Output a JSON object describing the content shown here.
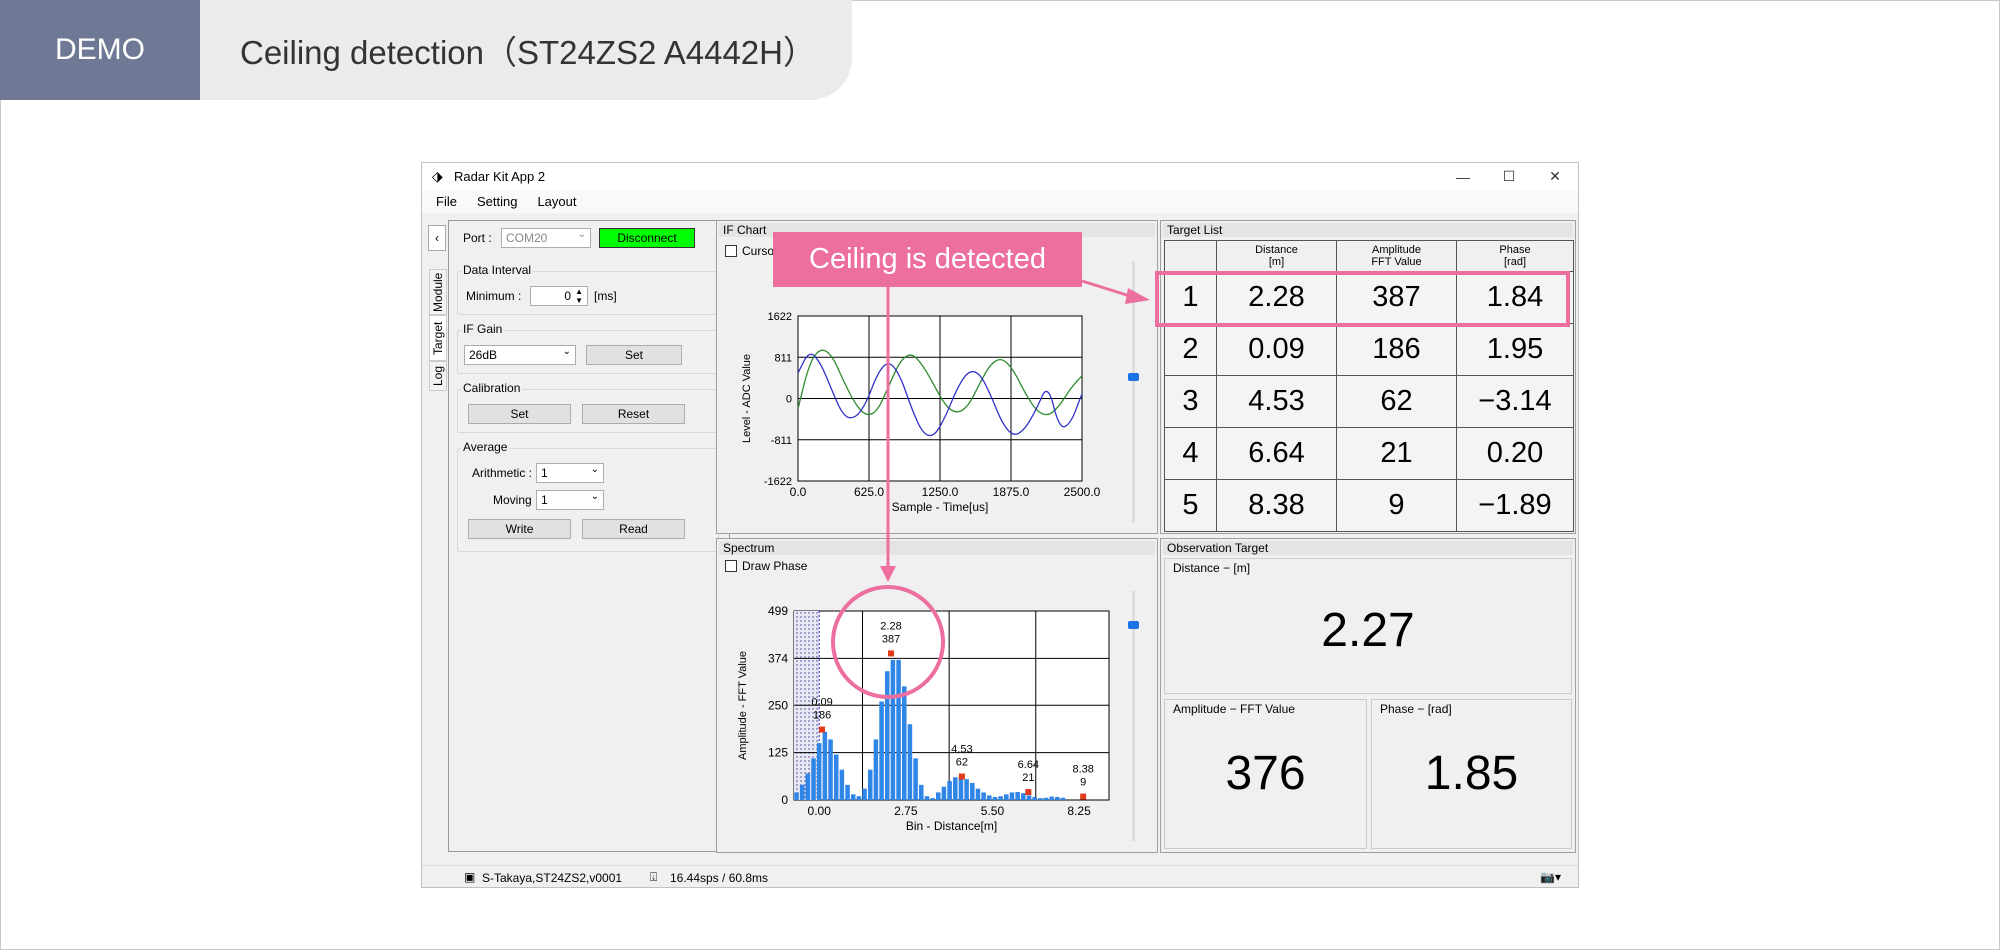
{
  "slide": {
    "demo_label": "DEMO",
    "title": "Ceiling detection（ST24ZS2 A4442H）",
    "callout": "Ceiling is detected"
  },
  "window": {
    "title": "Radar Kit App 2",
    "menu": [
      "File",
      "Setting",
      "Layout"
    ]
  },
  "left_nav": {
    "collapse": "‹",
    "tabs": [
      "Module",
      "Target",
      "Log"
    ]
  },
  "settings": {
    "port_label": "Port :",
    "port_value": "COM20",
    "connect_button": "Disconnect",
    "data_interval": {
      "title": "Data Interval",
      "min_label": "Minimum :",
      "value": "0",
      "unit": "[ms]"
    },
    "if_gain": {
      "title": "IF Gain",
      "value": "26dB",
      "set": "Set"
    },
    "calibration": {
      "title": "Calibration",
      "set": "Set",
      "reset": "Reset"
    },
    "average": {
      "title": "Average",
      "arith_label": "Arithmetic :",
      "arith_value": "1",
      "moving_label": "Moving :",
      "moving_value": "1",
      "write": "Write",
      "read": "Read"
    }
  },
  "if_chart_pane": {
    "title": "IF Chart",
    "cursor_label": "Curso"
  },
  "spectrum_pane": {
    "title": "Spectrum",
    "draw_phase": "Draw Phase"
  },
  "target_list": {
    "title": "Target List",
    "headers": [
      "Distance\n[m]",
      "Amplitude\nFFT Value",
      "Phase\n[rad]"
    ],
    "rows": [
      {
        "idx": "1",
        "distance": "2.28",
        "amplitude": "387",
        "phase": "1.84"
      },
      {
        "idx": "2",
        "distance": "0.09",
        "amplitude": "186",
        "phase": "1.95"
      },
      {
        "idx": "3",
        "distance": "4.53",
        "amplitude": "62",
        "phase": "−3.14"
      },
      {
        "idx": "4",
        "distance": "6.64",
        "amplitude": "21",
        "phase": "0.20"
      },
      {
        "idx": "5",
        "distance": "8.38",
        "amplitude": "9",
        "phase": "−1.89"
      }
    ]
  },
  "observation": {
    "title": "Observation Target",
    "distance_label": "Distance − [m]",
    "distance_value": "2.27",
    "amplitude_label": "Amplitude − FFT Value",
    "amplitude_value": "376",
    "phase_label": "Phase − [rad]",
    "phase_value": "1.85"
  },
  "status": {
    "device": "S-Takaya,ST24ZS2,v0001",
    "rate": "16.44sps / 60.8ms",
    "camera": "📷▾"
  },
  "colors": {
    "accent_pink": "#ec6fa0",
    "bar_blue": "#2f86e6",
    "disconnect_green": "#00ff00",
    "demo_bg": "#6f7996"
  },
  "chart_data": [
    {
      "type": "line",
      "title": "",
      "xlabel": "Sample - Time[us]",
      "ylabel": "Level - ADC Value",
      "xlim": [
        0,
        2500
      ],
      "ylim": [
        -1622,
        1622
      ],
      "x_ticks": [
        "0.0",
        "625.0",
        "1250.0",
        "1875.0",
        "2500.0"
      ],
      "y_ticks": [
        "1622",
        "811",
        "0",
        "-811",
        "-1622"
      ],
      "grid": true,
      "series": [
        {
          "color": "#2e8b2e",
          "x": [
            0,
            100,
            200,
            300,
            400,
            500,
            600,
            700,
            800,
            900,
            1000,
            1100,
            1200,
            1300,
            1400,
            1500,
            1600,
            1700,
            1800,
            1900,
            2000,
            2100,
            2200,
            2300,
            2400,
            2500
          ],
          "values": [
            -200,
            700,
            1000,
            850,
            350,
            -100,
            -350,
            -250,
            250,
            750,
            900,
            650,
            250,
            -150,
            -300,
            -150,
            300,
            700,
            800,
            550,
            100,
            -250,
            -350,
            -150,
            200,
            450
          ]
        },
        {
          "color": "#3030c8",
          "x": [
            0,
            100,
            200,
            300,
            400,
            500,
            600,
            700,
            800,
            900,
            1000,
            1100,
            1200,
            1300,
            1400,
            1500,
            1600,
            1700,
            1800,
            1900,
            2000,
            2100,
            2200,
            2300,
            2400,
            2500
          ],
          "values": [
            500,
            950,
            700,
            150,
            -350,
            -400,
            -100,
            500,
            750,
            450,
            -200,
            -700,
            -750,
            -350,
            200,
            550,
            500,
            50,
            -500,
            -750,
            -600,
            -200,
            300,
            -600,
            -500,
            100
          ]
        }
      ]
    },
    {
      "type": "bar",
      "title": "",
      "xlabel": "Bin - Distance[m]",
      "ylabel": "Amplitude - FFT Value",
      "xlim": [
        -0.8,
        9.2
      ],
      "ylim": [
        0,
        499
      ],
      "x_ticks": [
        "0.00",
        "2.75",
        "5.50",
        "8.25"
      ],
      "x_tick_values": [
        0,
        2.75,
        5.5,
        8.25
      ],
      "y_ticks": [
        "0",
        "125",
        "250",
        "374",
        "499"
      ],
      "y_tick_values": [
        0,
        125,
        250,
        374,
        499
      ],
      "grid": true,
      "bin_step": 0.18,
      "bin_start": -0.72,
      "values": [
        20,
        40,
        70,
        110,
        150,
        180,
        160,
        120,
        80,
        40,
        15,
        10,
        30,
        80,
        160,
        260,
        340,
        370,
        370,
        300,
        200,
        110,
        40,
        10,
        5,
        20,
        35,
        50,
        60,
        62,
        55,
        45,
        30,
        20,
        12,
        8,
        10,
        15,
        20,
        21,
        18,
        12,
        8,
        5,
        6,
        9,
        8,
        6
      ],
      "peaks": [
        {
          "x": 0.09,
          "value": 186,
          "label_distance": "0.09",
          "label_value": "186"
        },
        {
          "x": 2.28,
          "value": 387,
          "label_distance": "2.28",
          "label_value": "387"
        },
        {
          "x": 4.53,
          "value": 62,
          "label_distance": "4.53",
          "label_value": "62"
        },
        {
          "x": 6.64,
          "value": 21,
          "label_distance": "6.64",
          "label_value": "21"
        },
        {
          "x": 8.38,
          "value": 9,
          "label_distance": "8.38",
          "label_value": "9"
        }
      ]
    }
  ]
}
